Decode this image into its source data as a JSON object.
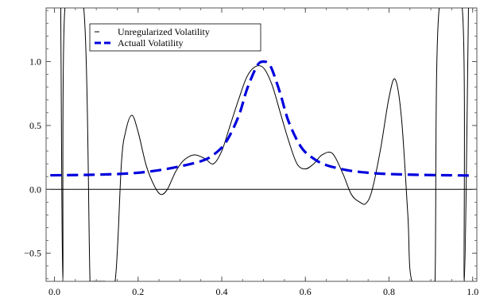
{
  "chart_data": {
    "type": "line",
    "title": "",
    "xlabel": "",
    "ylabel": "",
    "xlim": [
      -0.02,
      1.01
    ],
    "ylim": [
      -0.72,
      1.42
    ],
    "x_ticks": [
      0.0,
      0.2,
      0.4,
      0.6,
      0.8,
      1.0
    ],
    "x_tick_labels": [
      "0.0",
      "0.2",
      "0.4",
      "0.6",
      "0.8",
      "1.0"
    ],
    "y_ticks": [
      -0.5,
      0.0,
      0.5,
      1.0
    ],
    "y_tick_labels": [
      "−0.5",
      "0.0",
      "0.5",
      "1.0"
    ],
    "zero_line": true,
    "grid": false,
    "legend_position": "top-left",
    "series": [
      {
        "name": "Unregularized Volatility",
        "color": "#000000",
        "style": "solid",
        "x": [
          0.015,
          0.02,
          0.025,
          0.07,
          0.085,
          0.09,
          0.1,
          0.12,
          0.145,
          0.16,
          0.17,
          0.185,
          0.2,
          0.22,
          0.24,
          0.255,
          0.27,
          0.29,
          0.31,
          0.335,
          0.36,
          0.38,
          0.4,
          0.42,
          0.44,
          0.46,
          0.48,
          0.5,
          0.52,
          0.54,
          0.56,
          0.58,
          0.6,
          0.62,
          0.64,
          0.665,
          0.69,
          0.71,
          0.73,
          0.745,
          0.76,
          0.78,
          0.8,
          0.815,
          0.83,
          0.845,
          0.855,
          0.9,
          0.91,
          0.92,
          0.975,
          0.98,
          0.99
        ],
        "y": [
          1.42,
          -0.72,
          1.42,
          1.42,
          -0.72,
          -0.72,
          -0.72,
          -0.72,
          -0.72,
          0.2,
          0.45,
          0.58,
          0.45,
          0.18,
          0.02,
          -0.04,
          0.0,
          0.14,
          0.23,
          0.27,
          0.24,
          0.2,
          0.3,
          0.5,
          0.7,
          0.88,
          0.96,
          0.95,
          0.82,
          0.6,
          0.38,
          0.2,
          0.16,
          0.2,
          0.27,
          0.28,
          0.12,
          -0.04,
          -0.1,
          -0.11,
          0.0,
          0.32,
          0.72,
          0.86,
          0.55,
          -0.2,
          -0.72,
          -0.72,
          -0.72,
          1.42,
          1.42,
          -0.72,
          1.42
        ]
      },
      {
        "name": "Actuall Volatility",
        "color": "#0000dd",
        "style": "dashed",
        "x": [
          -0.01,
          0.05,
          0.1,
          0.15,
          0.2,
          0.25,
          0.3,
          0.35,
          0.38,
          0.41,
          0.44,
          0.46,
          0.48,
          0.49,
          0.5,
          0.51,
          0.52,
          0.54,
          0.56,
          0.59,
          0.62,
          0.65,
          0.7,
          0.75,
          0.8,
          0.85,
          0.9,
          0.95,
          1.0
        ],
        "y": [
          0.11,
          0.112,
          0.115,
          0.12,
          0.13,
          0.15,
          0.18,
          0.22,
          0.27,
          0.37,
          0.57,
          0.78,
          0.94,
          0.99,
          1.0,
          0.99,
          0.94,
          0.75,
          0.53,
          0.33,
          0.24,
          0.19,
          0.15,
          0.13,
          0.12,
          0.115,
          0.112,
          0.11,
          0.108
        ]
      }
    ]
  }
}
